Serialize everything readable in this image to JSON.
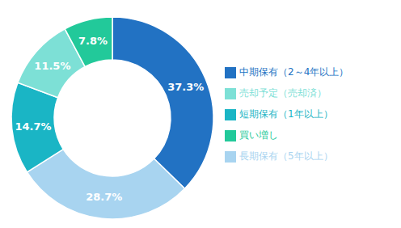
{
  "chart_data": {
    "type": "pie",
    "categories": [
      "中期保有（2～4年以上）",
      "長期保有（5年以上）",
      "短期保有（1年以上）",
      "売却予定（売却済）",
      "買い増し"
    ],
    "values": [
      37.3,
      28.7,
      14.7,
      11.5,
      7.8
    ],
    "value_labels": [
      "37.3%",
      "28.7%",
      "14.7%",
      "11.5%",
      "7.8%"
    ],
    "colors": [
      "#2272c3",
      "#a8d4f0",
      "#1ab5c5",
      "#7de0d6",
      "#22c99a"
    ],
    "data_labels": true,
    "legend": "right"
  }
}
